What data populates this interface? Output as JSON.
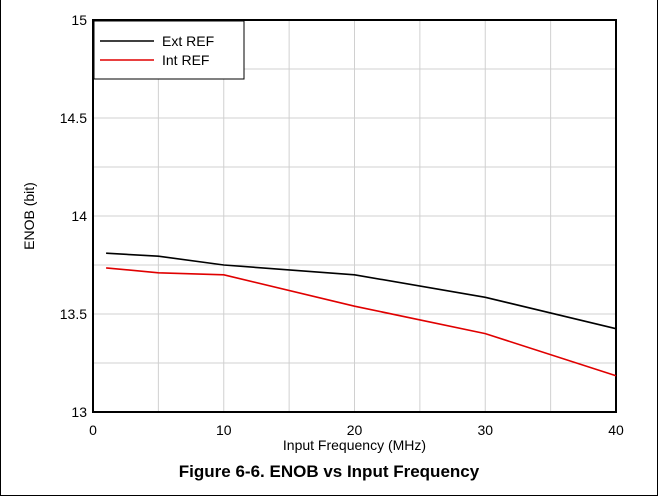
{
  "caption": "Figure 6-6. ENOB vs Input Frequency",
  "chart_data": {
    "type": "line",
    "title": "",
    "xlabel": "Input Frequency (MHz)",
    "ylabel": "ENOB (bit)",
    "xlim": [
      0,
      40
    ],
    "ylim": [
      13,
      15
    ],
    "xticks": [
      0,
      10,
      20,
      30,
      40
    ],
    "yticks": [
      13,
      13.5,
      14,
      14.5,
      15
    ],
    "xtick_labels": [
      "0",
      "10",
      "20",
      "30",
      "40"
    ],
    "ytick_labels": [
      "13",
      "13.5",
      "14",
      "14.5",
      "15"
    ],
    "grid": true,
    "legend_position": "top-left",
    "series": [
      {
        "name": "Ext REF",
        "color": "#000000",
        "x": [
          1,
          5,
          10,
          20,
          30,
          40
        ],
        "y": [
          13.81,
          13.795,
          13.75,
          13.7,
          13.585,
          13.425
        ]
      },
      {
        "name": "Int REF",
        "color": "#e00000",
        "x": [
          1,
          5,
          10,
          20,
          30,
          40
        ],
        "y": [
          13.735,
          13.71,
          13.7,
          13.54,
          13.4,
          13.185
        ]
      }
    ]
  }
}
